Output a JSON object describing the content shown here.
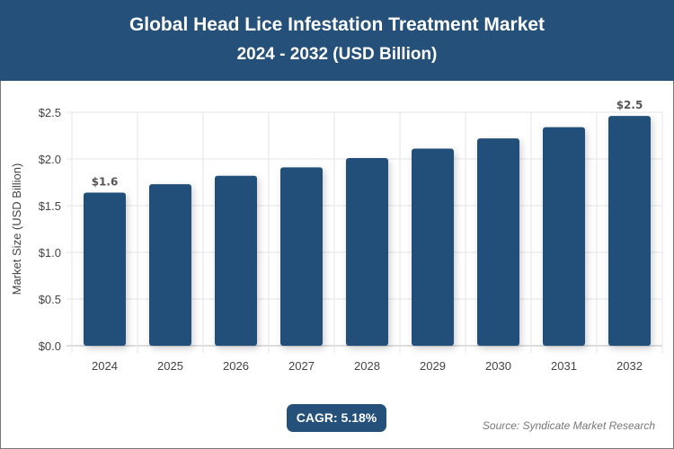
{
  "header": {
    "title": "Global Head Lice Infestation Treatment Market",
    "subtitle": "2024 - 2032 (USD Billion)"
  },
  "chart_data": {
    "type": "bar",
    "title": "Global Head Lice Infestation Treatment Market",
    "subtitle": "2024 - 2032 (USD Billion)",
    "categories": [
      "2024",
      "2025",
      "2026",
      "2027",
      "2028",
      "2029",
      "2030",
      "2031",
      "2032"
    ],
    "values": [
      1.64,
      1.73,
      1.82,
      1.91,
      2.01,
      2.11,
      2.22,
      2.34,
      2.46
    ],
    "data_labels": {
      "0": "$1.6",
      "8": "$2.5"
    },
    "xlabel": "",
    "ylabel": "Market Size (USD Billion)",
    "ylim": [
      0,
      2.5
    ],
    "yticks": [
      "$0.0",
      "$0.5",
      "$1.0",
      "$1.5",
      "$2.0",
      "$2.5"
    ],
    "grid": true,
    "bar_color": "#24507a"
  },
  "footer": {
    "cagr": "CAGR: 5.18%",
    "source": "Source: Syndicate Market Research"
  }
}
